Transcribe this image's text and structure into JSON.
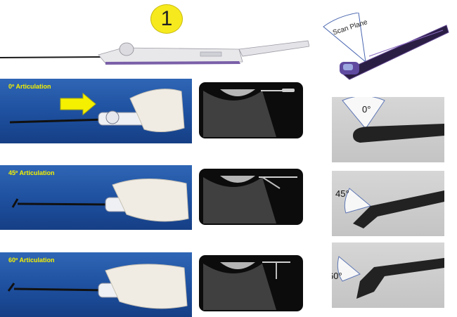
{
  "badge": {
    "number": "1"
  },
  "scan_inset": {
    "label": "Scan Plane"
  },
  "rows": [
    {
      "articulation_label": "0º Articulation",
      "angle_label": "0°"
    },
    {
      "articulation_label": "45º Articulation",
      "angle_label": "45°"
    },
    {
      "articulation_label": "60º Articulation",
      "angle_label": "60°"
    }
  ],
  "colors": {
    "badge": "#f6ea1e",
    "arrow": "#f4f000",
    "label_yellow": "#f4f000",
    "panel_blue": "#1d4f9e",
    "probe_purple": "#4a2f6e"
  }
}
